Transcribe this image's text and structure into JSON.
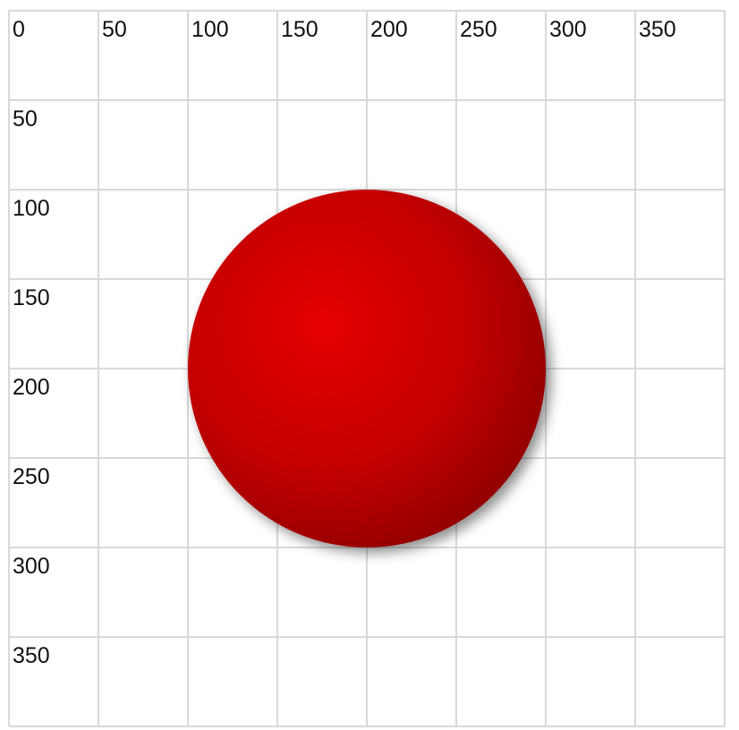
{
  "grid": {
    "x_ticks": [
      "0",
      "50",
      "100",
      "150",
      "200",
      "250",
      "300",
      "350"
    ],
    "y_ticks": [
      "0",
      "50",
      "100",
      "150",
      "200",
      "250",
      "300",
      "350"
    ],
    "major_step": 50,
    "range": [
      0,
      400
    ]
  },
  "circle": {
    "center": [
      200,
      200
    ],
    "radius": 100,
    "fill_light": "#e60000",
    "fill_dark": "#8a0000",
    "shadow_color": "#000000"
  },
  "colors": {
    "background": "#ffffff",
    "grid": "#d9d9d9",
    "text": "#111111"
  }
}
